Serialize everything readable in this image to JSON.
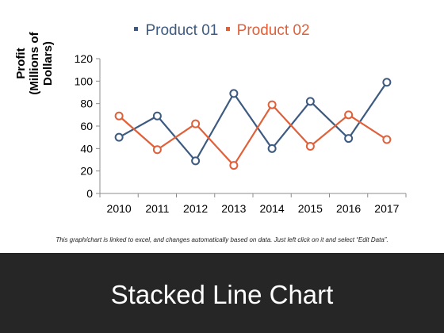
{
  "chart_data": {
    "type": "line",
    "categories": [
      "2010",
      "2011",
      "2012",
      "2013",
      "2014",
      "2015",
      "2016",
      "2017"
    ],
    "series": [
      {
        "name": "Product 01",
        "color": "#3d5a80",
        "values": [
          50,
          69,
          29,
          89,
          40,
          82,
          49,
          99
        ]
      },
      {
        "name": "Product 02",
        "color": "#e0603a",
        "values": [
          69,
          39,
          62,
          25,
          79,
          42,
          70,
          48
        ]
      }
    ],
    "ylabel": "Profit (Millions of Dollars)",
    "xlabel": "",
    "ylim": [
      0,
      120
    ],
    "yticks": [
      0,
      20,
      40,
      60,
      80,
      100,
      120
    ],
    "grid": false,
    "legend_position": "top-center",
    "marker": "hollow-circle"
  },
  "legend": {
    "items": [
      {
        "label": "Product 01",
        "color": "#3d5a80"
      },
      {
        "label": "Product 02",
        "color": "#e0603a"
      }
    ]
  },
  "footnote": "This graph/chart is linked to excel, and changes automatically based on data. Just left click on it and select “Edit Data”.",
  "footer": {
    "title": "Stacked Line Chart",
    "background": "#262626"
  }
}
